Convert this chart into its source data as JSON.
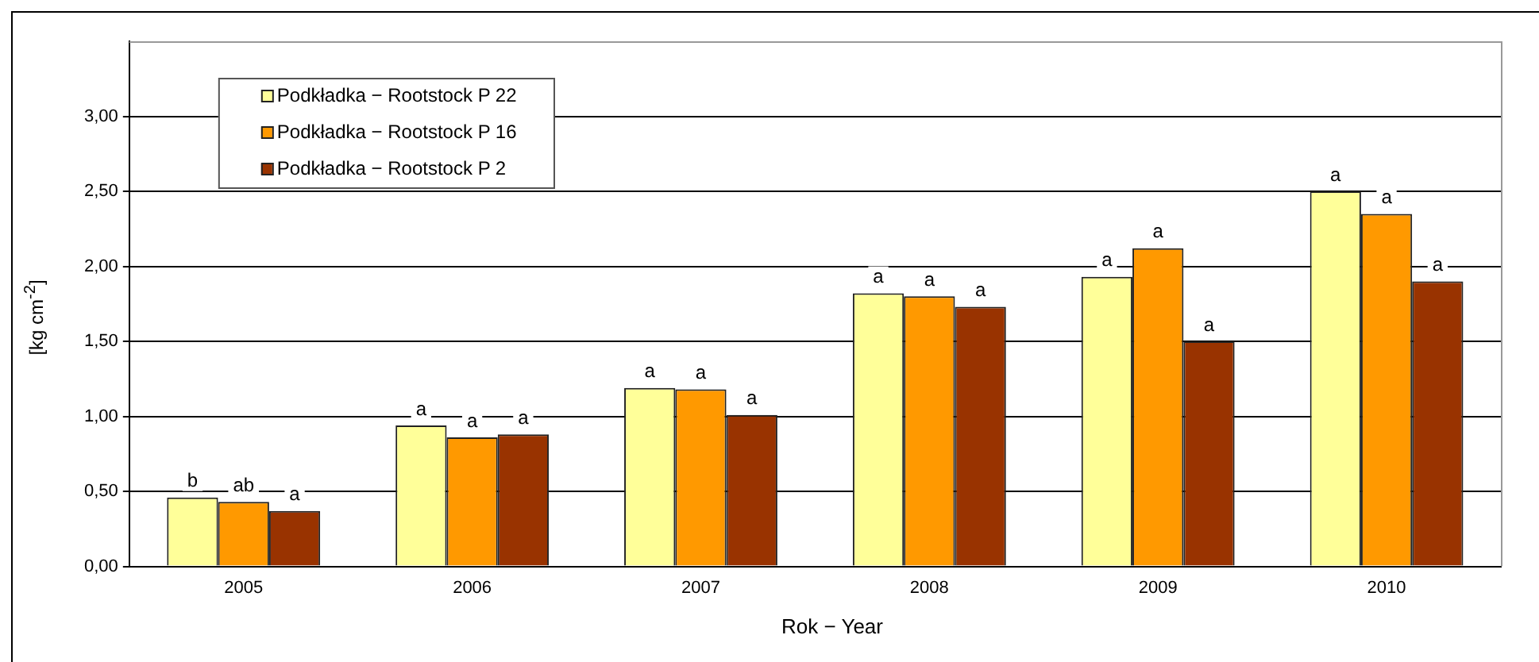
{
  "chart_data": {
    "type": "bar",
    "xlabel": "Rok − Year",
    "ylabel": "[kg cm$^{-2}$]",
    "categories": [
      "2005",
      "2006",
      "2007",
      "2008",
      "2009",
      "2010"
    ],
    "series": [
      {
        "name": "Podkładka − Rootstock P 22",
        "color": "#ffff99",
        "values": [
          0.46,
          0.94,
          1.19,
          1.82,
          1.93,
          2.5
        ],
        "value_labels": [
          "b",
          "a",
          "a",
          "a",
          "a",
          "a"
        ]
      },
      {
        "name": "Podkładka − Rootstock P 16",
        "color": "#ff9900",
        "values": [
          0.43,
          0.86,
          1.18,
          1.8,
          2.12,
          2.35
        ],
        "value_labels": [
          "ab",
          "a",
          "a",
          "a",
          "a",
          "a"
        ]
      },
      {
        "name": "Podkładka − Rootstock P 2",
        "color": "#993300",
        "values": [
          0.37,
          0.88,
          1.01,
          1.73,
          1.5,
          1.9
        ],
        "value_labels": [
          "a",
          "a",
          "a",
          "a",
          "a",
          "a"
        ]
      }
    ],
    "ylim": [
      0,
      3.5
    ],
    "yticks": [
      {
        "value": 0,
        "label": "0,00"
      },
      {
        "value": 0.5,
        "label": "0,50"
      },
      {
        "value": 1,
        "label": "1,00"
      },
      {
        "value": 1.5,
        "label": "1,50"
      },
      {
        "value": 2,
        "label": "2,00"
      },
      {
        "value": 2.5,
        "label": "2,50"
      },
      {
        "value": 3,
        "label": "3,00"
      }
    ],
    "grid": "y",
    "legend": "top left"
  }
}
